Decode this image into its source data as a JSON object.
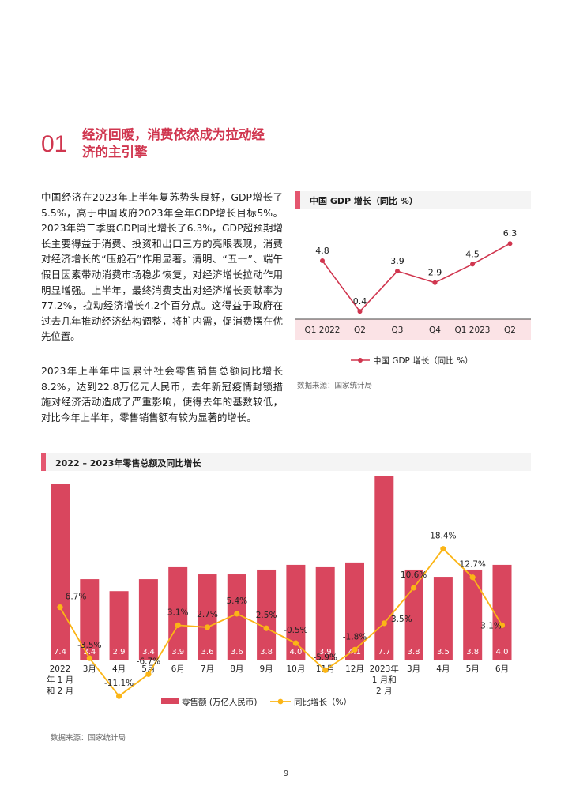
{
  "section": {
    "number": "01",
    "title_line1": "经济回暖，消费依然成为拉动经",
    "title_line2": "济的主引擎"
  },
  "paragraph1": "中国经济在2023年上半年复苏势头良好，GDP增长了5.5%，高于中国政府2023年全年GDP增长目标5%。2023年第二季度GDP同比增长了6.3%，GDP超预期增长主要得益于消费、投资和出口三方的亮眼表现，消费对经济增长的“压舱石”作用显著。清明、“五一”、端午假日因素带动消费市场稳步恢复，对经济增长拉动作用明显增强。上半年，最终消费支出对经济增长贡献率为77.2%，拉动经济增长4.2个百分点。这得益于政府在过去几年推动经济结构调整，将扩内需，促消费摆在优先位置。",
  "paragraph2": "2023年上半年中国累计社会零售销售总额同比增长8.2%，达到22.8万亿元人民币，去年新冠疫情封锁措施对经济活动造成了严重影响，使得去年的基数较低，对比今年上半年，零售销售额有较为显著的增长。",
  "gdp_panel": {
    "title": "中国 GDP 增长（同比 %）",
    "legend": "中国 GDP 增长（同比 %）",
    "source": "数据来源：国家统计局",
    "color": "#d0364f",
    "band_color": "#fbe3e6"
  },
  "retail_panel": {
    "title": "2022 – 2023年零售总额及同比增长",
    "legend_bar": "零售额 (万亿人民币)",
    "legend_line": "同比增长（%）",
    "source": "数据来源：国家统计局",
    "bar_color": "#d9465e",
    "line_color": "#fbb516"
  },
  "page_number": "9",
  "chart_data": [
    {
      "type": "line",
      "title": "中国 GDP 增长（同比 %）",
      "categories": [
        "Q1 2022",
        "Q2",
        "Q3",
        "Q4",
        "Q1 2023",
        "Q2"
      ],
      "series": [
        {
          "name": "中国 GDP 增长（同比 %）",
          "values": [
            4.8,
            0.4,
            3.9,
            2.9,
            4.5,
            6.3
          ],
          "labels": [
            "4.8",
            "0.4",
            "3.9",
            "2.9",
            "4.5",
            "6.3"
          ]
        }
      ],
      "ylim": [
        0,
        7
      ],
      "grid": false,
      "legend": "bottom"
    },
    {
      "type": "bar",
      "title": "2022 – 2023年零售总额及同比增长",
      "categories": [
        [
          "2022",
          "年 1 月",
          "和 2 月"
        ],
        [
          "3月"
        ],
        [
          "4月"
        ],
        [
          "5月"
        ],
        [
          "6月"
        ],
        [
          "7月"
        ],
        [
          "8月"
        ],
        [
          "9月"
        ],
        [
          "10月"
        ],
        [
          "11月"
        ],
        [
          "12月"
        ],
        [
          "2023年",
          "1 月和",
          "2 月"
        ],
        [
          "3月"
        ],
        [
          "4月"
        ],
        [
          "5月"
        ],
        [
          "6月"
        ]
      ],
      "series": [
        {
          "name": "零售额 (万亿人民币)",
          "type": "bar",
          "values": [
            7.4,
            3.4,
            2.9,
            3.4,
            3.9,
            3.6,
            3.6,
            3.8,
            4.0,
            3.9,
            4.1,
            7.7,
            3.8,
            3.5,
            3.8,
            4.0
          ],
          "labels": [
            "7.4",
            "3.4",
            "2.9",
            "3.4",
            "3.9",
            "3.6",
            "3.6",
            "3.8",
            "4.0",
            "3.9",
            "4.1",
            "7.7",
            "3.8",
            "3.5",
            "3.8",
            "4.0"
          ]
        },
        {
          "name": "同比增长（%）",
          "type": "line",
          "values": [
            6.7,
            -3.5,
            -11.1,
            -6.7,
            3.1,
            2.7,
            5.4,
            2.5,
            -0.5,
            -5.9,
            -1.8,
            3.5,
            10.6,
            18.4,
            12.7,
            3.1
          ],
          "labels": [
            "6.7%",
            "-3.5%",
            "-11.1%",
            "-6.7%",
            "3.1%",
            "2.7%",
            "5.4%",
            "2.5%",
            "-0.5%",
            "-5.9%",
            "-1.8%",
            "3.5%",
            "10.6%",
            "18.4%",
            "12.7%",
            "3.1%"
          ]
        }
      ],
      "legend": "bottom",
      "grid": false
    }
  ]
}
